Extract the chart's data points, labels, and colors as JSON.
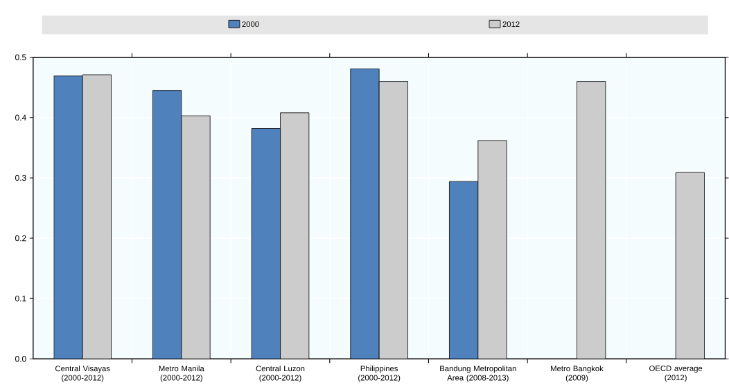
{
  "chart_data": {
    "type": "bar",
    "categories": [
      "Central Visayas (2000-2012)",
      "Metro Manila (2000-2012)",
      "Central Luzon (2000-2012)",
      "Philippines (2000-2012)",
      "Bandung Metropolitan Area (2008-2013)",
      "Metro Bangkok (2009)",
      "OECD average (2012)"
    ],
    "series": [
      {
        "name": "2000",
        "color": "#4f81bd",
        "values": [
          0.469,
          0.445,
          0.382,
          0.481,
          0.294,
          null,
          null
        ]
      },
      {
        "name": "2012",
        "color": "#cccccc",
        "values": [
          0.471,
          0.403,
          0.408,
          0.46,
          0.362,
          0.46,
          0.309
        ]
      }
    ],
    "ylim": [
      0,
      0.5
    ],
    "yticks": [
      {
        "value": 0,
        "label": "0.0"
      },
      {
        "value": 0.1,
        "label": "0.1"
      },
      {
        "value": 0.2,
        "label": "0.2"
      },
      {
        "value": 0.3,
        "label": "0.3"
      },
      {
        "value": 0.4,
        "label": "0.4"
      },
      {
        "value": 0.5,
        "label": "0.5"
      }
    ],
    "grid": true,
    "legend": "top"
  }
}
